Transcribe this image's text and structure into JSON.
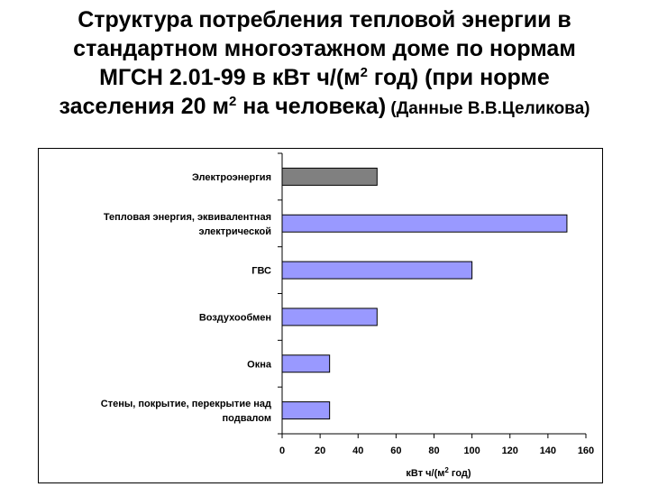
{
  "title": {
    "line1": "Структура потребления тепловой энергии в",
    "line2": "стандартном многоэтажном доме по нормам",
    "line3": "МГСН 2.01-99 в кВт ч/(м",
    "line3_sup": "2",
    "line3_end": " год) (при норме",
    "line4": "заселения 20 м",
    "line4_sup": "2",
    "line4_end": " на человека)",
    "source": " (Данные В.В.Целикова)"
  },
  "chart_data": {
    "type": "bar",
    "orientation": "horizontal",
    "categories": [
      [
        "Электроэнергия"
      ],
      [
        "Тепловая энергия, эквивалентная",
        "электрической"
      ],
      [
        "ГВС"
      ],
      [
        "Воздухообмен"
      ],
      [
        "Окна"
      ],
      [
        "Стены, покрытие, перекрытие над",
        "подвалом"
      ]
    ],
    "values": [
      50,
      150,
      100,
      50,
      25,
      25
    ],
    "colors": [
      "#808080",
      "#9999ff",
      "#9999ff",
      "#9999ff",
      "#9999ff",
      "#9999ff"
    ],
    "xlim": [
      0,
      160
    ],
    "ticks": [
      0,
      20,
      40,
      60,
      80,
      100,
      120,
      140,
      160
    ],
    "xlabel": "кВт ч/(м",
    "xlabel_sup": "2",
    "xlabel_end": " год)",
    "grid": false
  }
}
